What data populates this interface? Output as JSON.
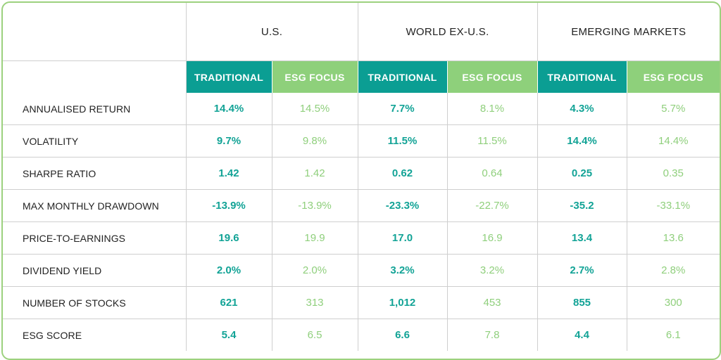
{
  "regions": [
    "U.S.",
    "WORLD EX-U.S.",
    "EMERGING MARKETS"
  ],
  "sub_headers": {
    "traditional": "TRADITIONAL",
    "esg": "ESG FOCUS"
  },
  "rows": [
    {
      "label": "ANNUALISED RETURN",
      "values": [
        "14.4%",
        "14.5%",
        "7.7%",
        "8.1%",
        "4.3%",
        "5.7%"
      ]
    },
    {
      "label": "VOLATILITY",
      "values": [
        "9.7%",
        "9.8%",
        "11.5%",
        "11.5%",
        "14.4%",
        "14.4%"
      ]
    },
    {
      "label": "SHARPE RATIO",
      "values": [
        "1.42",
        "1.42",
        "0.62",
        "0.64",
        "0.25",
        "0.35"
      ]
    },
    {
      "label": "MAX MONTHLY DRAWDOWN",
      "values": [
        "-13.9%",
        "-13.9%",
        "-23.3%",
        "-22.7%",
        "-35.2",
        "-33.1%"
      ]
    },
    {
      "label": "PRICE-TO-EARNINGS",
      "values": [
        "19.6",
        "19.9",
        "17.0",
        "16.9",
        "13.4",
        "13.6"
      ]
    },
    {
      "label": "DIVIDEND YIELD",
      "values": [
        "2.0%",
        "2.0%",
        "3.2%",
        "3.2%",
        "2.7%",
        "2.8%"
      ]
    },
    {
      "label": "NUMBER OF STOCKS",
      "values": [
        "621",
        "313",
        "1,012",
        "453",
        "855",
        "300"
      ]
    },
    {
      "label": "ESG SCORE",
      "values": [
        "5.4",
        "6.5",
        "6.6",
        "7.8",
        "4.4",
        "6.1"
      ]
    }
  ],
  "colors": {
    "traditional": "#0b9e93",
    "esg": "#8ed07b",
    "border": "#9cd17e"
  }
}
